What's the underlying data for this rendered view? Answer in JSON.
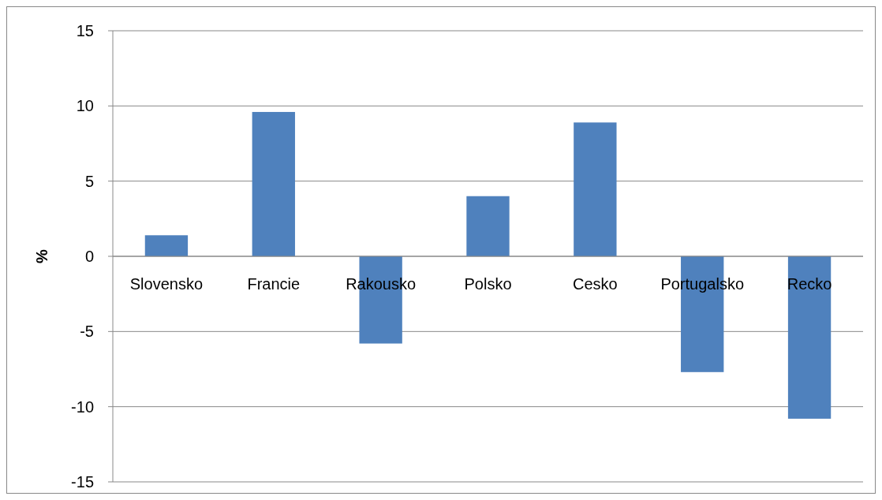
{
  "chart_data": {
    "type": "bar",
    "ylabel": "%",
    "categories": [
      "Slovensko",
      "Francie",
      "Rakousko",
      "Polsko",
      "Cesko",
      "Portugalsko",
      "Recko"
    ],
    "values": [
      1.4,
      9.6,
      -5.8,
      4.0,
      8.9,
      -7.7,
      -10.8
    ],
    "color": "#4f81bd",
    "ylim": [
      -15,
      15
    ],
    "yticks": [
      -15,
      -10,
      -5,
      0,
      5,
      10,
      15
    ],
    "grid": "y"
  }
}
